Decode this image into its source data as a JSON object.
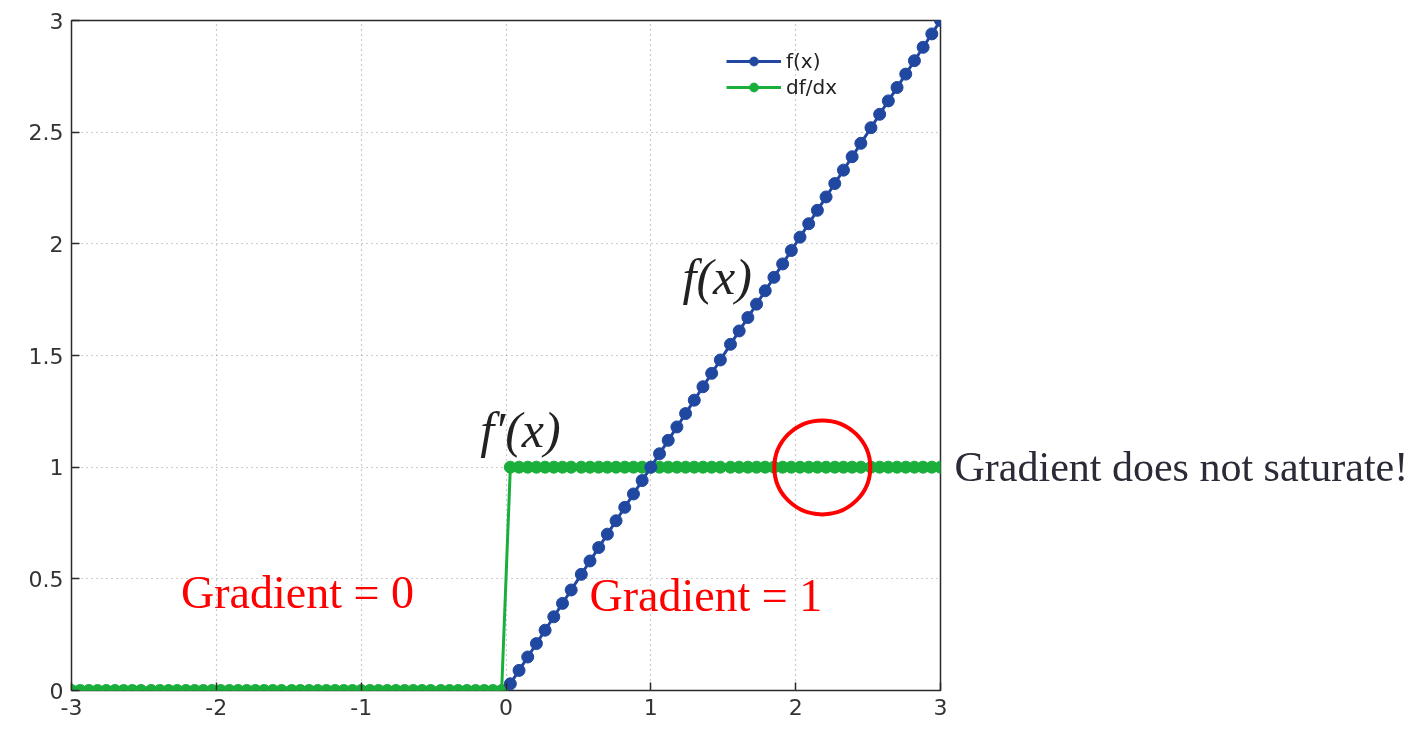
{
  "chart_data": {
    "type": "line",
    "xlim": [
      -3,
      3
    ],
    "ylim": [
      0,
      3
    ],
    "xticks": [
      -3,
      -2,
      -1,
      0,
      1,
      2,
      3
    ],
    "yticks": [
      0,
      0.5,
      1,
      1.5,
      2,
      2.5,
      3
    ],
    "grid": true,
    "legend": "top right",
    "marker": "circle",
    "line_style": "solid",
    "series": [
      {
        "name": "f(x)",
        "color": "#2148a0",
        "x": [
          0.03,
          0.09,
          0.15,
          0.21,
          0.27,
          0.33,
          0.39,
          0.45,
          0.52,
          0.58,
          0.64,
          0.7,
          0.76,
          0.82,
          0.88,
          0.94,
          1.0,
          1.06,
          1.12,
          1.18,
          1.24,
          1.3,
          1.36,
          1.42,
          1.48,
          1.55,
          1.61,
          1.67,
          1.73,
          1.79,
          1.85,
          1.91,
          1.97,
          2.03,
          2.09,
          2.15,
          2.21,
          2.27,
          2.33,
          2.39,
          2.45,
          2.52,
          2.58,
          2.64,
          2.7,
          2.76,
          2.82,
          2.88,
          2.94,
          3.0
        ],
        "values": [
          0.03,
          0.09,
          0.15,
          0.21,
          0.27,
          0.33,
          0.39,
          0.45,
          0.52,
          0.58,
          0.64,
          0.7,
          0.76,
          0.82,
          0.88,
          0.94,
          1.0,
          1.06,
          1.12,
          1.18,
          1.24,
          1.3,
          1.36,
          1.42,
          1.48,
          1.55,
          1.61,
          1.67,
          1.73,
          1.79,
          1.85,
          1.91,
          1.97,
          2.03,
          2.09,
          2.15,
          2.21,
          2.27,
          2.33,
          2.39,
          2.45,
          2.52,
          2.58,
          2.64,
          2.7,
          2.76,
          2.82,
          2.88,
          2.94,
          3.0
        ]
      },
      {
        "name": "df/dx",
        "color": "#1aae3b",
        "x": [
          -3.0,
          -2.94,
          -2.88,
          -2.82,
          -2.76,
          -2.7,
          -2.64,
          -2.58,
          -2.52,
          -2.45,
          -2.39,
          -2.33,
          -2.27,
          -2.21,
          -2.15,
          -2.09,
          -2.03,
          -1.97,
          -1.91,
          -1.85,
          -1.79,
          -1.73,
          -1.67,
          -1.61,
          -1.55,
          -1.48,
          -1.42,
          -1.36,
          -1.3,
          -1.24,
          -1.18,
          -1.12,
          -1.06,
          -1.0,
          -0.94,
          -0.88,
          -0.82,
          -0.76,
          -0.7,
          -0.64,
          -0.58,
          -0.52,
          -0.45,
          -0.39,
          -0.33,
          -0.27,
          -0.21,
          -0.15,
          -0.09,
          -0.03,
          0.03,
          0.09,
          0.15,
          0.21,
          0.27,
          0.33,
          0.39,
          0.45,
          0.52,
          0.58,
          0.64,
          0.7,
          0.76,
          0.82,
          0.88,
          0.94,
          1.0,
          1.06,
          1.12,
          1.18,
          1.24,
          1.3,
          1.36,
          1.42,
          1.48,
          1.55,
          1.61,
          1.67,
          1.73,
          1.79,
          1.85,
          1.91,
          1.97,
          2.03,
          2.09,
          2.15,
          2.21,
          2.27,
          2.33,
          2.39,
          2.45,
          2.52,
          2.58,
          2.64,
          2.7,
          2.76,
          2.82,
          2.88,
          2.94,
          3.0
        ],
        "values": [
          0,
          0,
          0,
          0,
          0,
          0,
          0,
          0,
          0,
          0,
          0,
          0,
          0,
          0,
          0,
          0,
          0,
          0,
          0,
          0,
          0,
          0,
          0,
          0,
          0,
          0,
          0,
          0,
          0,
          0,
          0,
          0,
          0,
          0,
          0,
          0,
          0,
          0,
          0,
          0,
          0,
          0,
          0,
          0,
          0,
          0,
          0,
          0,
          0,
          0,
          1,
          1,
          1,
          1,
          1,
          1,
          1,
          1,
          1,
          1,
          1,
          1,
          1,
          1,
          1,
          1,
          1,
          1,
          1,
          1,
          1,
          1,
          1,
          1,
          1,
          1,
          1,
          1,
          1,
          1,
          1,
          1,
          1,
          1,
          1,
          1,
          1,
          1,
          1,
          1,
          1,
          1,
          1,
          1,
          1,
          1,
          1,
          1,
          1,
          1
        ]
      }
    ],
    "annotations": [
      {
        "text": "f(x)",
        "x": 1.85,
        "y": 1.85
      },
      {
        "text": "f′(x)",
        "x": 0.1,
        "y": 1.0
      },
      "Gradient = 0",
      "Gradient = 1",
      "Gradient does not saturate!"
    ]
  }
}
